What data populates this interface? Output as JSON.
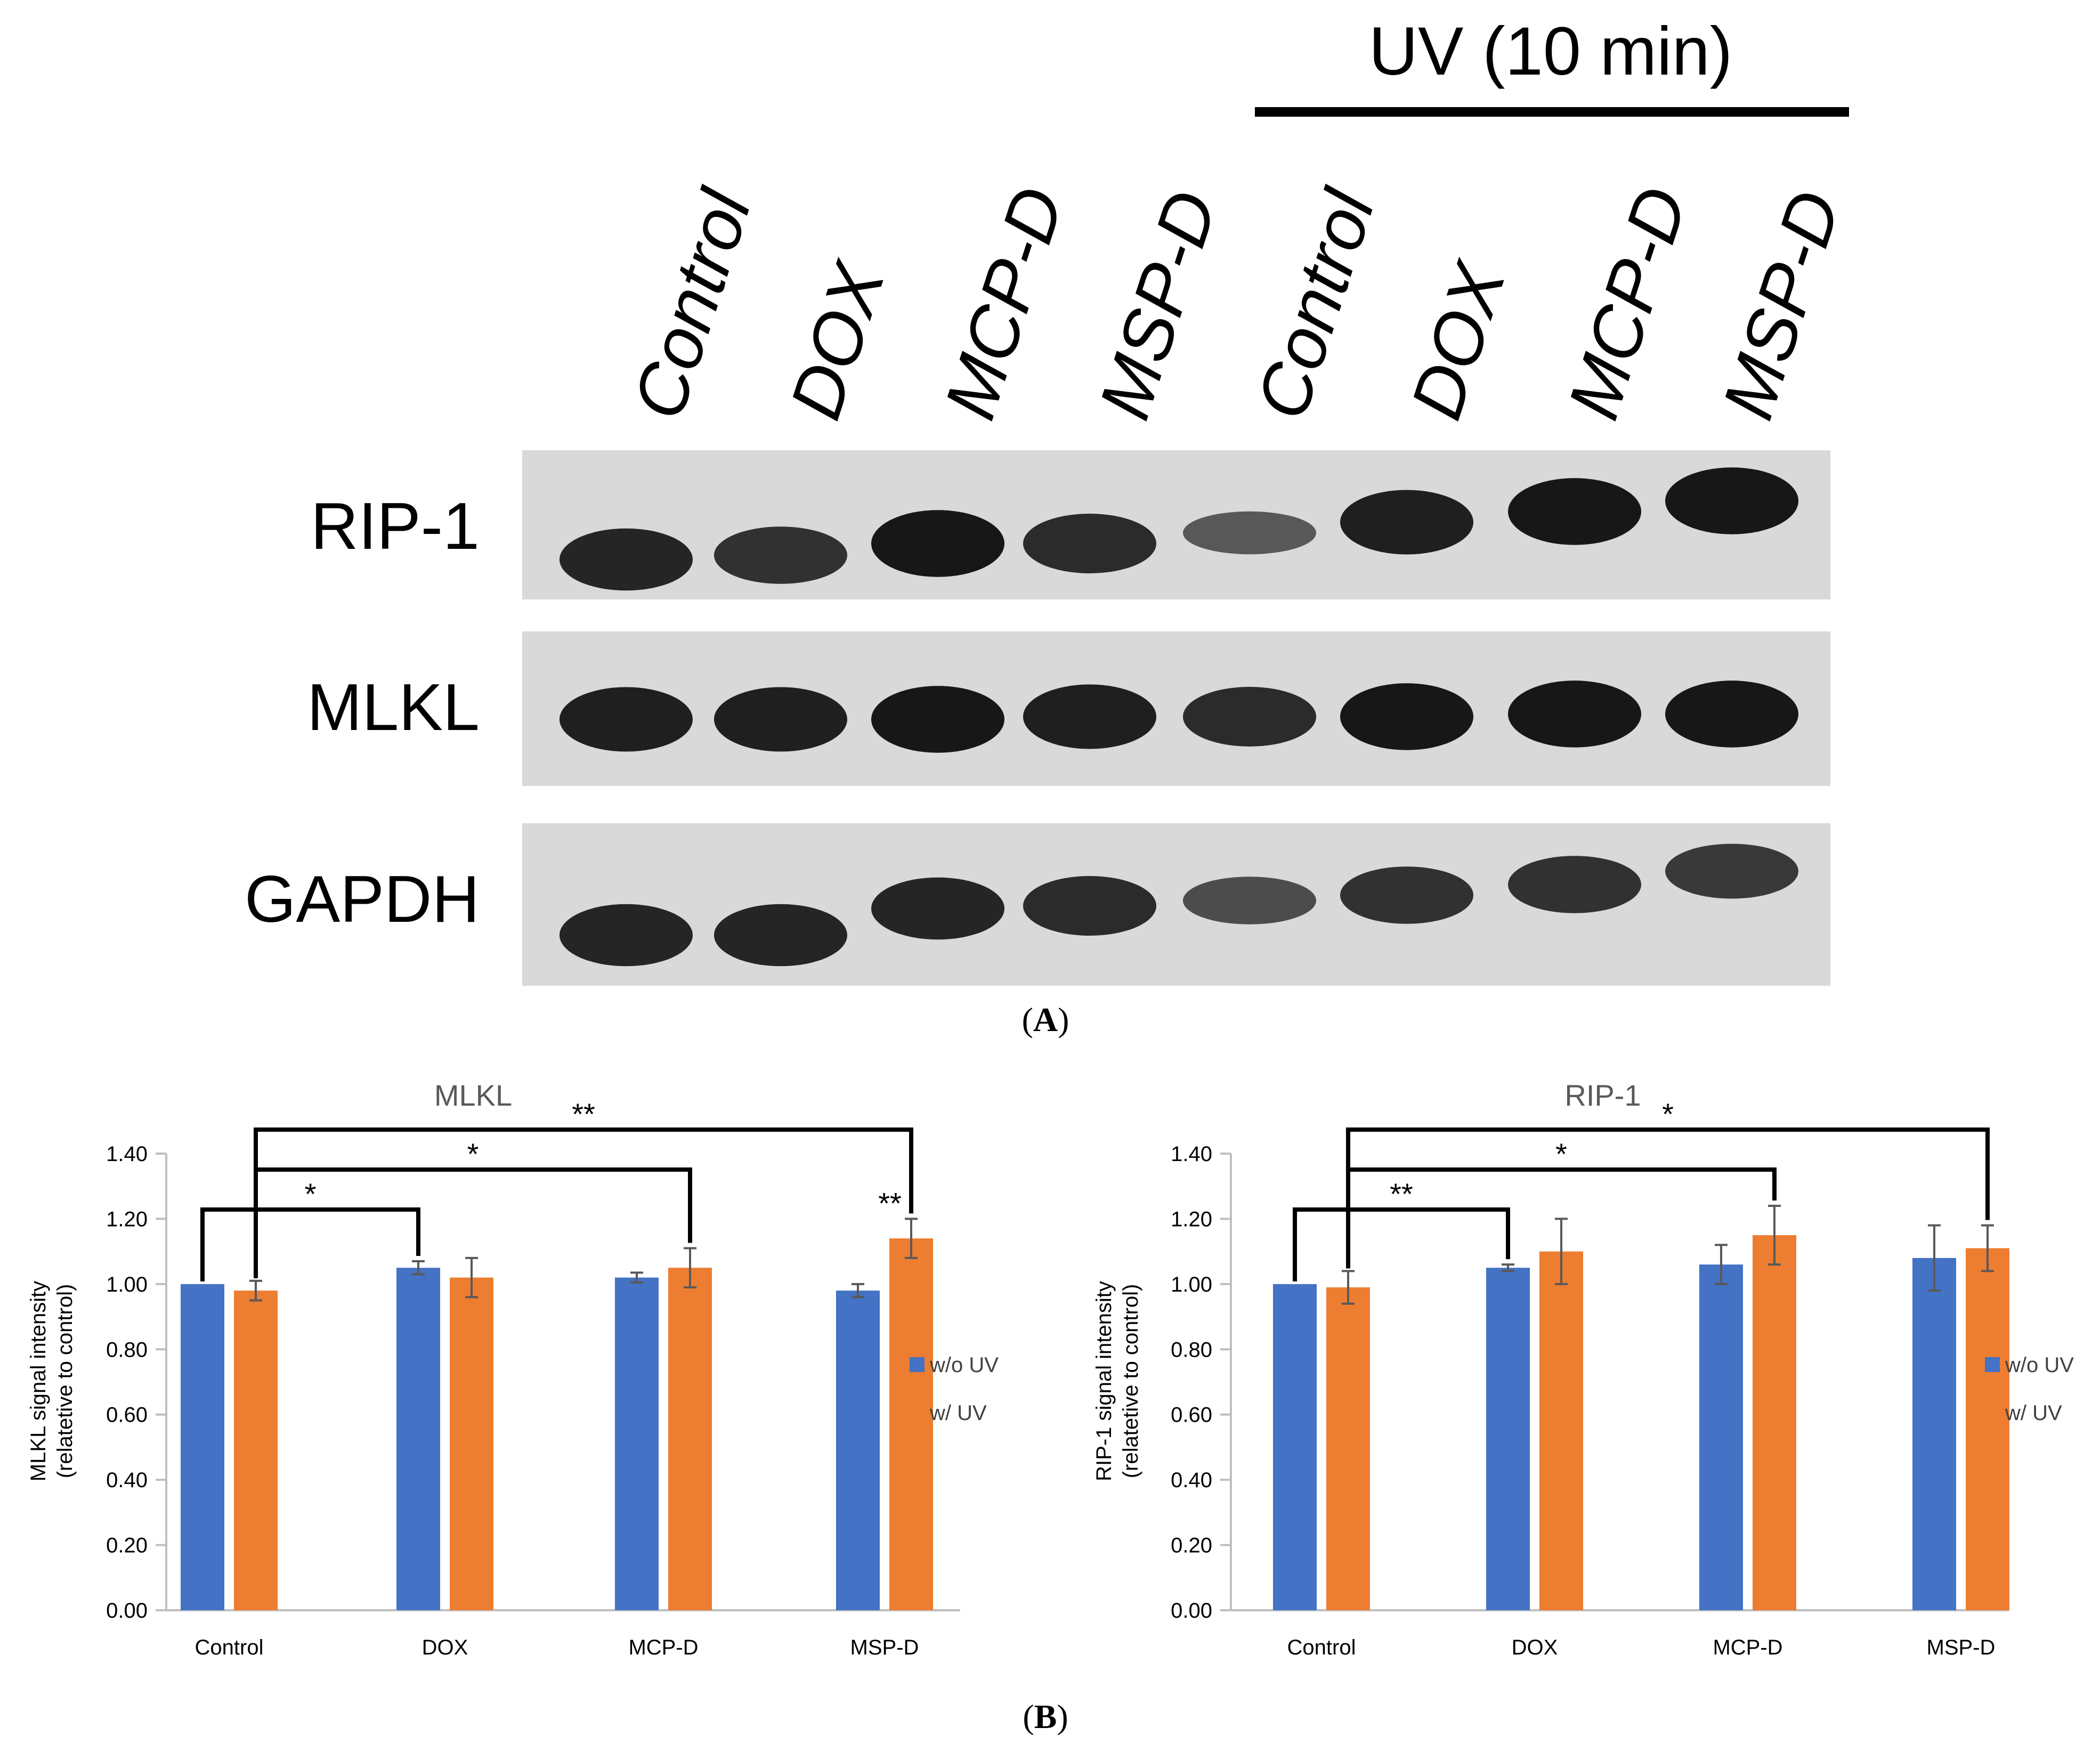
{
  "panel_a": {
    "treatment_label": "UV (10 min)",
    "lanes": [
      "Control",
      "DOX",
      "MCP-D",
      "MSP-D",
      "Control",
      "DOX",
      "MCP-D",
      "MSP-D"
    ],
    "blots": [
      {
        "label": "RIP-1",
        "intensity": [
          0.85,
          0.75,
          0.95,
          0.8,
          0.45,
          0.9,
          0.95,
          0.95
        ]
      },
      {
        "label": "MLKL",
        "intensity": [
          0.9,
          0.9,
          0.95,
          0.9,
          0.8,
          0.95,
          0.95,
          0.95
        ]
      },
      {
        "label": "GAPDH",
        "intensity": [
          0.85,
          0.85,
          0.85,
          0.8,
          0.55,
          0.75,
          0.75,
          0.7
        ]
      }
    ],
    "panel_letter": "A"
  },
  "panel_b": {
    "panel_letter": "B"
  },
  "colors": {
    "wo_uv": "#4472C4",
    "w_uv": "#ED7D31",
    "axis": "#bfbfbf",
    "text": "#404040",
    "title": "#595959",
    "blot_bg": "#d9d9d9",
    "band": "#111111"
  },
  "chart_data": [
    {
      "type": "bar",
      "title": "MLKL",
      "ylabel": "MLKL signal intensity (relatetive to control)",
      "ylabel_lines": [
        "MLKL signal intensity",
        "(relatetive to control)"
      ],
      "ylim": [
        0,
        1.4
      ],
      "yticks": [
        "0.00",
        "0.20",
        "0.40",
        "0.60",
        "0.80",
        "1.00",
        "1.20",
        "1.40"
      ],
      "categories": [
        "Control",
        "DOX",
        "MCP-D",
        "MSP-D"
      ],
      "series": [
        {
          "name": "w/o UV",
          "values": [
            1.0,
            1.05,
            1.02,
            0.98
          ],
          "errors": [
            0.0,
            0.02,
            0.015,
            0.02
          ]
        },
        {
          "name": "w/ UV",
          "values": [
            0.98,
            1.02,
            1.05,
            1.14
          ],
          "errors": [
            0.03,
            0.06,
            0.06,
            0.06
          ]
        }
      ],
      "legend": "right",
      "grid": false,
      "annotations": [
        {
          "type": "bracket",
          "from": "Control",
          "to": "DOX w/o UV",
          "label": "*"
        },
        {
          "type": "bracket",
          "from": "Control w/ UV",
          "to": "MCP-D w/ UV",
          "label": "*"
        },
        {
          "type": "bracket",
          "from": "Control w/ UV",
          "to": "MSP-D w/ UV",
          "label": "**"
        },
        {
          "type": "marker",
          "at": "MSP-D w/ UV",
          "label": "**"
        }
      ]
    },
    {
      "type": "bar",
      "title": "RIP-1",
      "ylabel": "RIP-1 signal intensity (relatetive to control)",
      "ylabel_lines": [
        "RIP-1 signal intensity",
        "(relatetive to control)"
      ],
      "ylim": [
        0,
        1.4
      ],
      "yticks": [
        "0.00",
        "0.20",
        "0.40",
        "0.60",
        "0.80",
        "1.00",
        "1.20",
        "1.40"
      ],
      "categories": [
        "Control",
        "DOX",
        "MCP-D",
        "MSP-D"
      ],
      "series": [
        {
          "name": "w/o UV",
          "values": [
            1.0,
            1.05,
            1.06,
            1.08
          ],
          "errors": [
            0.0,
            0.01,
            0.06,
            0.1
          ]
        },
        {
          "name": "w/ UV",
          "values": [
            0.99,
            1.1,
            1.15,
            1.11
          ],
          "errors": [
            0.05,
            0.1,
            0.09,
            0.07
          ]
        }
      ],
      "legend": "right",
      "grid": false,
      "annotations": [
        {
          "type": "bracket",
          "from": "Control",
          "to": "DOX w/o UV",
          "label": "**"
        },
        {
          "type": "bracket",
          "from": "Control w/ UV",
          "to": "MCP-D w/ UV",
          "label": "*"
        },
        {
          "type": "bracket",
          "from": "Control w/ UV",
          "to": "MSP-D w/ UV",
          "label": "*"
        }
      ]
    }
  ]
}
